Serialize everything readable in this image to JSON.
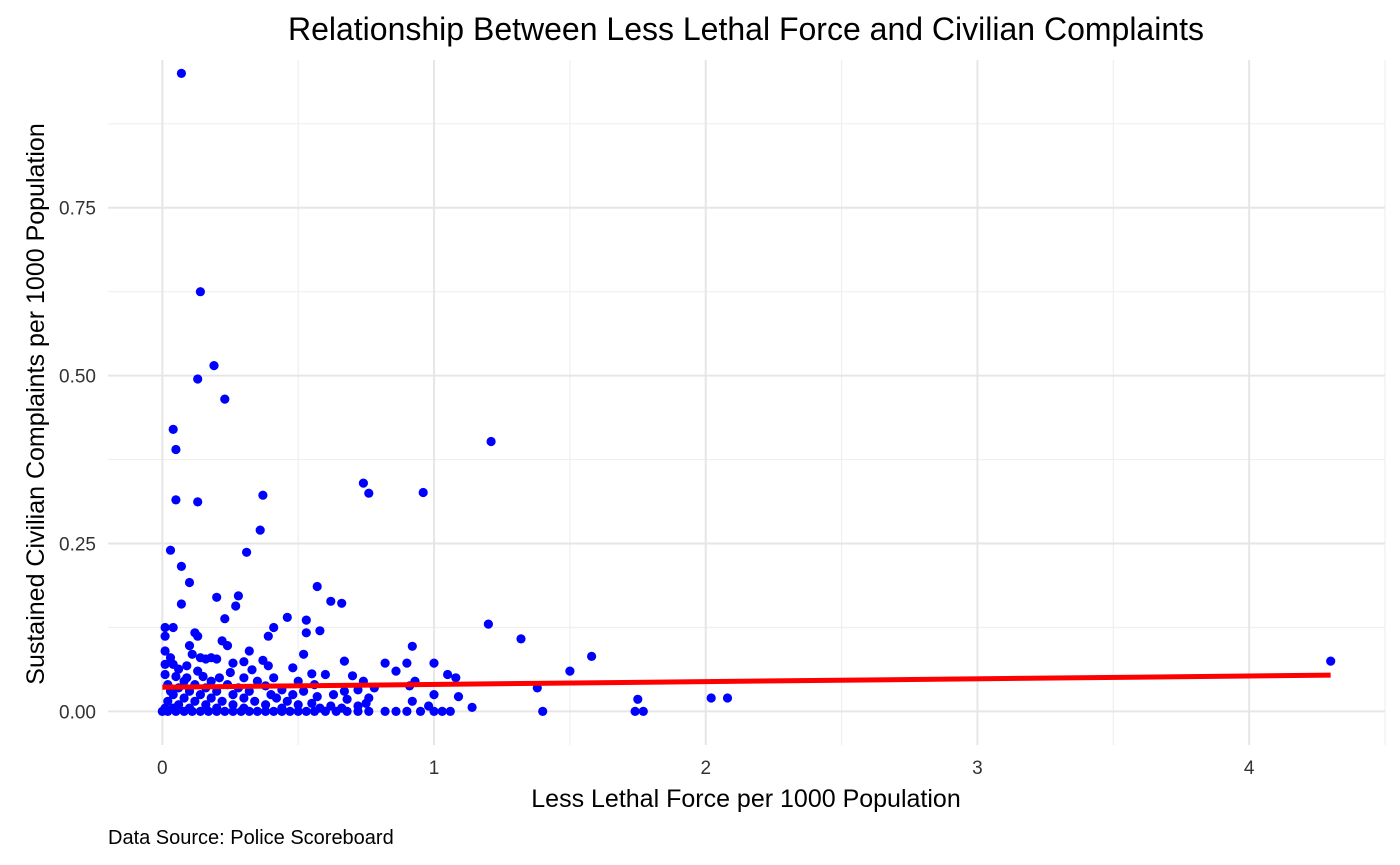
{
  "chart_data": {
    "type": "scatter",
    "title": "Relationship Between Less Lethal Force and Civilian Complaints",
    "xlabel": "Less Lethal Force per 1000 Population",
    "ylabel": "Sustained Civilian Complaints per 1000 Population",
    "caption": "Data Source: Police Scoreboard",
    "xlim": [
      -0.2,
      4.5
    ],
    "ylim": [
      -0.05,
      0.97
    ],
    "x_ticks": [
      0,
      1,
      2,
      3,
      4
    ],
    "x_tick_labels": [
      "0",
      "1",
      "2",
      "3",
      "4"
    ],
    "x_minor_ticks": [
      0.5,
      1.5,
      2.5,
      3.5,
      4.5
    ],
    "y_ticks": [
      0,
      0.25,
      0.5,
      0.75
    ],
    "y_tick_labels": [
      "0.00",
      "0.25",
      "0.50",
      "0.75"
    ],
    "y_minor_ticks": [
      0.125,
      0.375,
      0.625,
      0.875
    ],
    "grid": true,
    "point_color": "#0000ff",
    "line_color": "#ff0000",
    "trend_line": {
      "x": [
        0,
        4.3
      ],
      "y": [
        0.036,
        0.054
      ]
    },
    "points": [
      [
        0.07,
        0.95
      ],
      [
        0.14,
        0.625
      ],
      [
        0.19,
        0.515
      ],
      [
        0.13,
        0.495
      ],
      [
        0.23,
        0.465
      ],
      [
        0.04,
        0.42
      ],
      [
        0.05,
        0.39
      ],
      [
        1.21,
        0.402
      ],
      [
        0.74,
        0.34
      ],
      [
        0.76,
        0.325
      ],
      [
        0.96,
        0.326
      ],
      [
        0.37,
        0.322
      ],
      [
        0.05,
        0.315
      ],
      [
        0.13,
        0.312
      ],
      [
        0.36,
        0.27
      ],
      [
        0.03,
        0.24
      ],
      [
        0.31,
        0.237
      ],
      [
        0.07,
        0.216
      ],
      [
        0.1,
        0.192
      ],
      [
        0.57,
        0.186
      ],
      [
        0.28,
        0.172
      ],
      [
        0.2,
        0.17
      ],
      [
        0.62,
        0.164
      ],
      [
        0.66,
        0.161
      ],
      [
        0.07,
        0.16
      ],
      [
        0.27,
        0.157
      ],
      [
        0.46,
        0.14
      ],
      [
        0.53,
        0.136
      ],
      [
        0.23,
        0.138
      ],
      [
        1.2,
        0.13
      ],
      [
        0.04,
        0.125
      ],
      [
        0.41,
        0.125
      ],
      [
        0.01,
        0.125
      ],
      [
        0.58,
        0.12
      ],
      [
        0.53,
        0.117
      ],
      [
        0.12,
        0.117
      ],
      [
        0.39,
        0.112
      ],
      [
        0.13,
        0.112
      ],
      [
        0.01,
        0.112
      ],
      [
        1.32,
        0.108
      ],
      [
        0.22,
        0.105
      ],
      [
        0.1,
        0.098
      ],
      [
        0.24,
        0.098
      ],
      [
        0.92,
        0.097
      ],
      [
        0.32,
        0.09
      ],
      [
        0.01,
        0.09
      ],
      [
        0.11,
        0.085
      ],
      [
        0.52,
        0.085
      ],
      [
        0.18,
        0.08
      ],
      [
        1.58,
        0.082
      ],
      [
        0.03,
        0.08
      ],
      [
        0.14,
        0.08
      ],
      [
        0.2,
        0.078
      ],
      [
        0.37,
        0.076
      ],
      [
        0.67,
        0.075
      ],
      [
        0.16,
        0.078
      ],
      [
        0.3,
        0.074
      ],
      [
        0.82,
        0.072
      ],
      [
        0.9,
        0.072
      ],
      [
        1.0,
        0.072
      ],
      [
        0.04,
        0.07
      ],
      [
        0.01,
        0.07
      ],
      [
        0.09,
        0.068
      ],
      [
        0.26,
        0.072
      ],
      [
        0.39,
        0.068
      ],
      [
        0.48,
        0.065
      ],
      [
        0.06,
        0.063
      ],
      [
        0.13,
        0.06
      ],
      [
        0.25,
        0.058
      ],
      [
        0.33,
        0.062
      ],
      [
        0.55,
        0.056
      ],
      [
        0.6,
        0.055
      ],
      [
        0.86,
        0.06
      ],
      [
        1.5,
        0.06
      ],
      [
        0.01,
        0.055
      ],
      [
        0.05,
        0.052
      ],
      [
        0.09,
        0.05
      ],
      [
        0.15,
        0.052
      ],
      [
        0.21,
        0.05
      ],
      [
        0.3,
        0.05
      ],
      [
        0.41,
        0.05
      ],
      [
        0.7,
        0.053
      ],
      [
        1.05,
        0.055
      ],
      [
        0.08,
        0.045
      ],
      [
        0.18,
        0.045
      ],
      [
        0.35,
        0.045
      ],
      [
        0.5,
        0.045
      ],
      [
        0.74,
        0.045
      ],
      [
        0.93,
        0.045
      ],
      [
        1.08,
        0.05
      ],
      [
        0.02,
        0.04
      ],
      [
        0.12,
        0.04
      ],
      [
        0.24,
        0.04
      ],
      [
        0.38,
        0.038
      ],
      [
        0.56,
        0.04
      ],
      [
        0.78,
        0.035
      ],
      [
        0.91,
        0.038
      ],
      [
        1.38,
        0.035
      ],
      [
        0.06,
        0.035
      ],
      [
        0.16,
        0.035
      ],
      [
        0.28,
        0.035
      ],
      [
        0.44,
        0.032
      ],
      [
        0.67,
        0.03
      ],
      [
        0.72,
        0.032
      ],
      [
        0.03,
        0.03
      ],
      [
        0.1,
        0.03
      ],
      [
        0.2,
        0.03
      ],
      [
        0.32,
        0.03
      ],
      [
        0.52,
        0.03
      ],
      [
        0.63,
        0.025
      ],
      [
        1.0,
        0.025
      ],
      [
        0.04,
        0.025
      ],
      [
        0.14,
        0.025
      ],
      [
        0.26,
        0.025
      ],
      [
        0.4,
        0.025
      ],
      [
        0.48,
        0.025
      ],
      [
        0.57,
        0.022
      ],
      [
        0.76,
        0.02
      ],
      [
        1.09,
        0.022
      ],
      [
        0.08,
        0.02
      ],
      [
        0.18,
        0.02
      ],
      [
        0.3,
        0.02
      ],
      [
        0.42,
        0.02
      ],
      [
        0.68,
        0.018
      ],
      [
        0.92,
        0.015
      ],
      [
        1.75,
        0.018
      ],
      [
        2.02,
        0.02
      ],
      [
        2.08,
        0.02
      ],
      [
        0.02,
        0.015
      ],
      [
        0.12,
        0.015
      ],
      [
        0.22,
        0.015
      ],
      [
        0.34,
        0.015
      ],
      [
        0.46,
        0.015
      ],
      [
        0.55,
        0.012
      ],
      [
        0.75,
        0.012
      ],
      [
        0.06,
        0.01
      ],
      [
        0.16,
        0.01
      ],
      [
        0.26,
        0.01
      ],
      [
        0.38,
        0.01
      ],
      [
        0.5,
        0.01
      ],
      [
        0.62,
        0.008
      ],
      [
        0.72,
        0.008
      ],
      [
        0.98,
        0.008
      ],
      [
        1.14,
        0.006
      ],
      [
        0.01,
        0.005
      ],
      [
        0.04,
        0.005
      ],
      [
        0.1,
        0.005
      ],
      [
        0.2,
        0.005
      ],
      [
        0.3,
        0.005
      ],
      [
        0.44,
        0.005
      ],
      [
        0.58,
        0.005
      ],
      [
        0.66,
        0.005
      ],
      [
        0.0,
        0.0
      ],
      [
        0.02,
        0.0
      ],
      [
        0.05,
        0.0
      ],
      [
        0.08,
        0.0
      ],
      [
        0.11,
        0.0
      ],
      [
        0.14,
        0.0
      ],
      [
        0.17,
        0.0
      ],
      [
        0.2,
        0.0
      ],
      [
        0.23,
        0.0
      ],
      [
        0.26,
        0.0
      ],
      [
        0.29,
        0.0
      ],
      [
        0.32,
        0.0
      ],
      [
        0.35,
        0.0
      ],
      [
        0.38,
        0.0
      ],
      [
        0.41,
        0.0
      ],
      [
        0.44,
        0.0
      ],
      [
        0.47,
        0.0
      ],
      [
        0.5,
        0.0
      ],
      [
        0.53,
        0.0
      ],
      [
        0.56,
        0.0
      ],
      [
        0.6,
        0.0
      ],
      [
        0.64,
        0.0
      ],
      [
        0.68,
        0.0
      ],
      [
        0.72,
        0.0
      ],
      [
        0.76,
        0.0
      ],
      [
        0.82,
        0.0
      ],
      [
        0.86,
        0.0
      ],
      [
        0.9,
        0.0
      ],
      [
        0.95,
        0.0
      ],
      [
        1.0,
        0.0
      ],
      [
        1.03,
        0.0
      ],
      [
        1.06,
        0.0
      ],
      [
        1.4,
        0.0
      ],
      [
        1.74,
        0.0
      ],
      [
        1.77,
        0.0
      ],
      [
        4.3,
        0.075
      ]
    ]
  }
}
